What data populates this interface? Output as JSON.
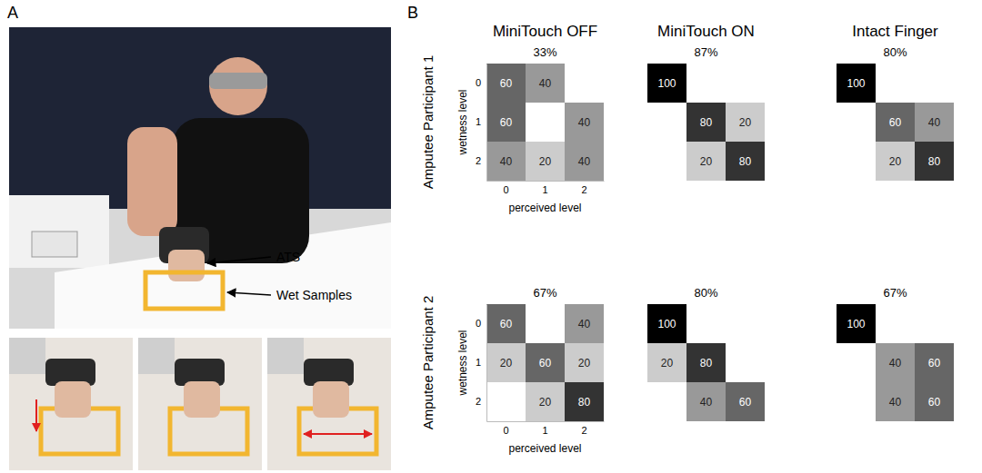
{
  "figure": {
    "panel_labels": [
      "A",
      "B"
    ],
    "photo_labels": [
      "ATS",
      "Wet Samples"
    ],
    "column_titles": [
      "MiniTouch OFF",
      "MiniTouch ON",
      "Intact Finger"
    ],
    "row_titles": [
      "Amputee Participant 1",
      "Amputee Participant 2"
    ]
  },
  "chart_data": [
    {
      "type": "heatmap",
      "title": "33%",
      "xlabel": "perceived level",
      "ylabel": "wetness level",
      "xticks": [
        0,
        1,
        2
      ],
      "yticks": [
        0,
        1,
        2
      ],
      "zlim": [
        0,
        100
      ],
      "tick_labels": true,
      "data_labels": true,
      "cells": [
        [
          60,
          40,
          null
        ],
        [
          60,
          null,
          40
        ],
        [
          40,
          20,
          40
        ]
      ]
    },
    {
      "type": "heatmap",
      "title": "87%",
      "xticks": [
        0,
        1,
        2
      ],
      "yticks": [
        0,
        1,
        2
      ],
      "zlim": [
        0,
        100
      ],
      "tick_labels": false,
      "data_labels": true,
      "cells": [
        [
          100,
          null,
          null
        ],
        [
          null,
          80,
          20
        ],
        [
          null,
          20,
          80
        ]
      ]
    },
    {
      "type": "heatmap",
      "title": "80%",
      "xticks": [
        0,
        1,
        2
      ],
      "yticks": [
        0,
        1,
        2
      ],
      "zlim": [
        0,
        100
      ],
      "tick_labels": false,
      "data_labels": true,
      "cells": [
        [
          100,
          null,
          null
        ],
        [
          null,
          60,
          40
        ],
        [
          null,
          20,
          80
        ]
      ]
    },
    {
      "type": "heatmap",
      "title": "67%",
      "xlabel": "perceived level",
      "ylabel": "wetness level",
      "xticks": [
        0,
        1,
        2
      ],
      "yticks": [
        0,
        1,
        2
      ],
      "zlim": [
        0,
        100
      ],
      "tick_labels": true,
      "data_labels": true,
      "cells": [
        [
          60,
          null,
          40
        ],
        [
          20,
          60,
          20
        ],
        [
          null,
          20,
          80
        ]
      ]
    },
    {
      "type": "heatmap",
      "title": "80%",
      "xticks": [
        0,
        1,
        2
      ],
      "yticks": [
        0,
        1,
        2
      ],
      "zlim": [
        0,
        100
      ],
      "tick_labels": false,
      "data_labels": true,
      "cells": [
        [
          100,
          null,
          null
        ],
        [
          20,
          80,
          null
        ],
        [
          null,
          40,
          60
        ]
      ]
    },
    {
      "type": "heatmap",
      "title": "67%",
      "xticks": [
        0,
        1,
        2
      ],
      "yticks": [
        0,
        1,
        2
      ],
      "zlim": [
        0,
        100
      ],
      "tick_labels": false,
      "data_labels": true,
      "cells": [
        [
          100,
          null,
          null
        ],
        [
          null,
          40,
          60
        ],
        [
          null,
          40,
          60
        ]
      ]
    }
  ]
}
